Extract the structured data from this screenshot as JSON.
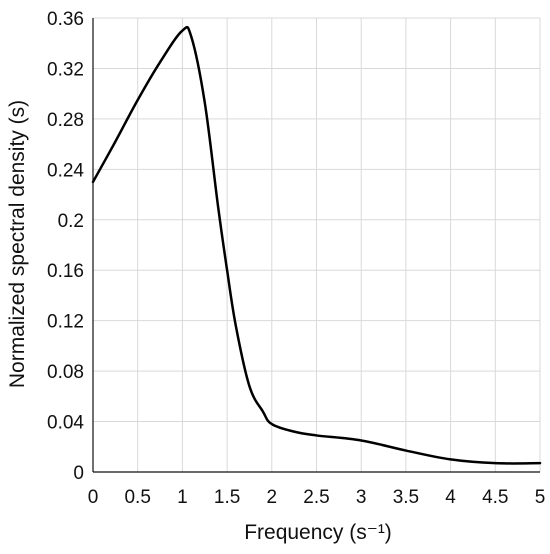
{
  "chart_data": {
    "type": "line",
    "title": "",
    "xlabel": "Frequency (s⁻¹)",
    "ylabel": "Normalized spectral density (s)",
    "xlim": [
      0,
      5
    ],
    "ylim": [
      0,
      0.36
    ],
    "grid": true,
    "x_ticks": [
      "0",
      "0.5",
      "1",
      "1.5",
      "2",
      "2.5",
      "3",
      "3.5",
      "4",
      "4.5",
      "5"
    ],
    "y_ticks": [
      "0",
      "0.04",
      "0.08",
      "0.12",
      "0.16",
      "0.2",
      "0.24",
      "0.28",
      "0.32",
      "0.36"
    ],
    "series": [
      {
        "color": "#000000",
        "x": [
          0,
          0.25,
          0.5,
          0.75,
          1.0,
          1.1,
          1.25,
          1.4,
          1.5,
          1.6,
          1.75,
          1.9,
          2.0,
          2.25,
          2.5,
          3.0,
          3.5,
          4.0,
          4.5,
          5.0
        ],
        "y": [
          0.23,
          0.262,
          0.295,
          0.325,
          0.35,
          0.345,
          0.293,
          0.21,
          0.16,
          0.115,
          0.068,
          0.048,
          0.038,
          0.032,
          0.029,
          0.025,
          0.017,
          0.01,
          0.007,
          0.007
        ]
      }
    ]
  }
}
